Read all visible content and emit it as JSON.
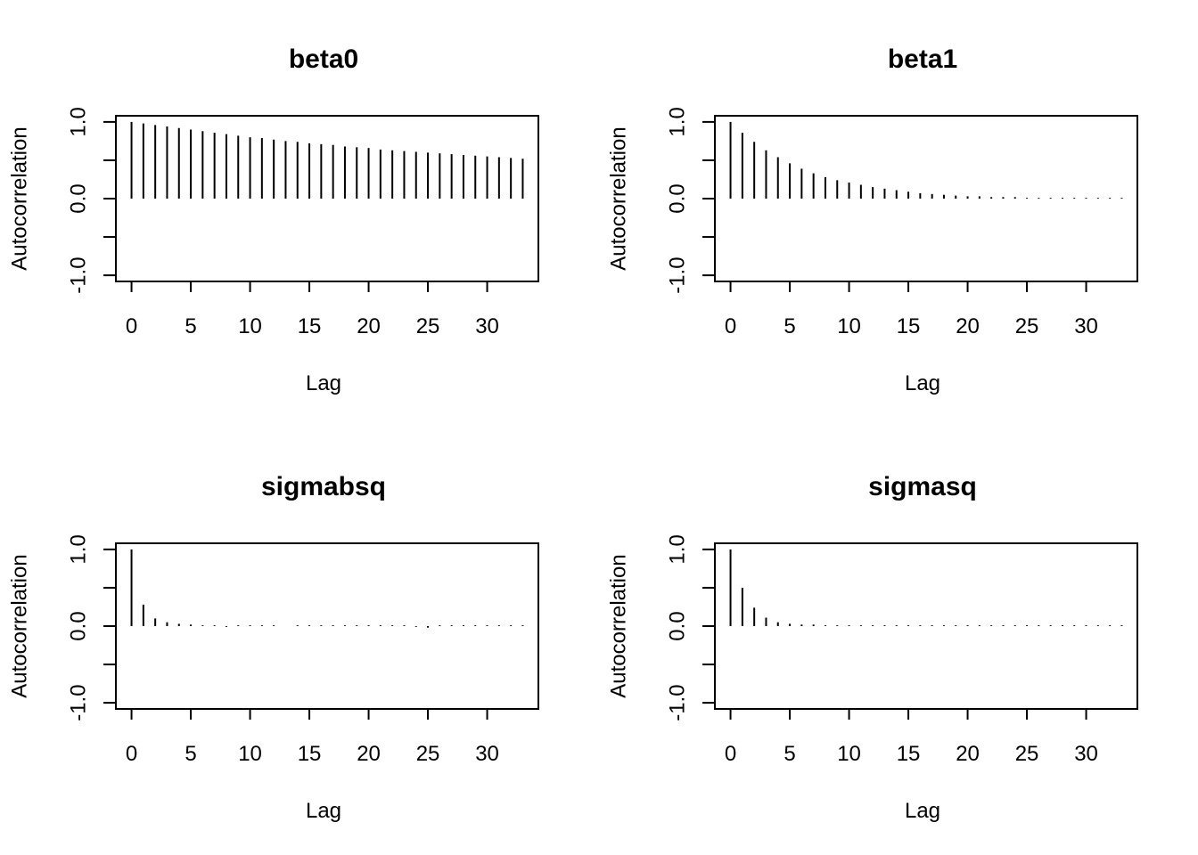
{
  "chart_data": [
    {
      "type": "bar",
      "title": "beta0",
      "xlabel": "Lag",
      "ylabel": "Autocorrelation",
      "xlim": [
        -1.32,
        34.32
      ],
      "ylim": [
        -1.08,
        1.08
      ],
      "xticks": [
        0,
        5,
        10,
        15,
        20,
        25,
        30
      ],
      "yticks": [
        -1.0,
        -0.5,
        0.0,
        0.5,
        1.0
      ],
      "ytick_labels": [
        "-1.0",
        "",
        "0.0",
        "",
        "1.0"
      ],
      "grid": false,
      "x": [
        0,
        1,
        2,
        3,
        4,
        5,
        6,
        7,
        8,
        9,
        10,
        11,
        12,
        13,
        14,
        15,
        16,
        17,
        18,
        19,
        20,
        21,
        22,
        23,
        24,
        25,
        26,
        27,
        28,
        29,
        30,
        31,
        32,
        33
      ],
      "values": [
        1.0,
        0.98,
        0.96,
        0.94,
        0.92,
        0.9,
        0.88,
        0.86,
        0.84,
        0.82,
        0.8,
        0.79,
        0.77,
        0.75,
        0.74,
        0.72,
        0.71,
        0.7,
        0.68,
        0.67,
        0.66,
        0.64,
        0.63,
        0.62,
        0.61,
        0.6,
        0.59,
        0.58,
        0.57,
        0.56,
        0.55,
        0.54,
        0.53,
        0.52
      ]
    },
    {
      "type": "bar",
      "title": "beta1",
      "xlabel": "Lag",
      "ylabel": "Autocorrelation",
      "xlim": [
        -1.32,
        34.32
      ],
      "ylim": [
        -1.08,
        1.08
      ],
      "xticks": [
        0,
        5,
        10,
        15,
        20,
        25,
        30
      ],
      "yticks": [
        -1.0,
        -0.5,
        0.0,
        0.5,
        1.0
      ],
      "ytick_labels": [
        "-1.0",
        "",
        "0.0",
        "",
        "1.0"
      ],
      "grid": false,
      "x": [
        0,
        1,
        2,
        3,
        4,
        5,
        6,
        7,
        8,
        9,
        10,
        11,
        12,
        13,
        14,
        15,
        16,
        17,
        18,
        19,
        20,
        21,
        22,
        23,
        24,
        25,
        26,
        27,
        28,
        29,
        30,
        31,
        32,
        33
      ],
      "values": [
        1.0,
        0.86,
        0.74,
        0.63,
        0.54,
        0.46,
        0.39,
        0.33,
        0.28,
        0.24,
        0.21,
        0.18,
        0.15,
        0.13,
        0.11,
        0.09,
        0.07,
        0.06,
        0.05,
        0.04,
        0.03,
        0.03,
        0.02,
        0.02,
        0.02,
        0.01,
        0.01,
        0.01,
        0.01,
        0.01,
        0.01,
        0.01,
        0.01,
        0.01
      ]
    },
    {
      "type": "bar",
      "title": "sigmabsq",
      "xlabel": "Lag",
      "ylabel": "Autocorrelation",
      "xlim": [
        -1.32,
        34.32
      ],
      "ylim": [
        -1.08,
        1.08
      ],
      "xticks": [
        0,
        5,
        10,
        15,
        20,
        25,
        30
      ],
      "yticks": [
        -1.0,
        -0.5,
        0.0,
        0.5,
        1.0
      ],
      "ytick_labels": [
        "-1.0",
        "",
        "0.0",
        "",
        "1.0"
      ],
      "grid": false,
      "x": [
        0,
        1,
        2,
        3,
        4,
        5,
        6,
        7,
        8,
        9,
        10,
        11,
        12,
        13,
        14,
        15,
        16,
        17,
        18,
        19,
        20,
        21,
        22,
        23,
        24,
        25,
        26,
        27,
        28,
        29,
        30,
        31,
        32,
        33
      ],
      "values": [
        1.0,
        0.28,
        0.1,
        0.05,
        0.03,
        0.02,
        0.01,
        0.01,
        -0.01,
        0.01,
        0.01,
        0.01,
        0.01,
        0.0,
        0.01,
        0.01,
        0.01,
        0.01,
        0.01,
        0.01,
        0.01,
        0.01,
        0.01,
        0.01,
        -0.01,
        -0.02,
        0.01,
        0.01,
        0.01,
        0.01,
        0.01,
        0.01,
        0.01,
        0.01
      ]
    },
    {
      "type": "bar",
      "title": "sigmasq",
      "xlabel": "Lag",
      "ylabel": "Autocorrelation",
      "xlim": [
        -1.32,
        34.32
      ],
      "ylim": [
        -1.08,
        1.08
      ],
      "xticks": [
        0,
        5,
        10,
        15,
        20,
        25,
        30
      ],
      "yticks": [
        -1.0,
        -0.5,
        0.0,
        0.5,
        1.0
      ],
      "ytick_labels": [
        "-1.0",
        "",
        "0.0",
        "",
        "1.0"
      ],
      "grid": false,
      "x": [
        0,
        1,
        2,
        3,
        4,
        5,
        6,
        7,
        8,
        9,
        10,
        11,
        12,
        13,
        14,
        15,
        16,
        17,
        18,
        19,
        20,
        21,
        22,
        23,
        24,
        25,
        26,
        27,
        28,
        29,
        30,
        31,
        32,
        33
      ],
      "values": [
        1.0,
        0.5,
        0.24,
        0.11,
        0.05,
        0.03,
        0.02,
        0.02,
        0.01,
        0.01,
        0.01,
        0.01,
        0.01,
        0.01,
        0.01,
        0.01,
        0.01,
        0.01,
        0.01,
        0.01,
        0.01,
        0.01,
        0.01,
        0.01,
        0.01,
        0.01,
        0.01,
        0.01,
        0.01,
        0.01,
        0.01,
        0.01,
        0.01,
        0.01
      ]
    }
  ]
}
